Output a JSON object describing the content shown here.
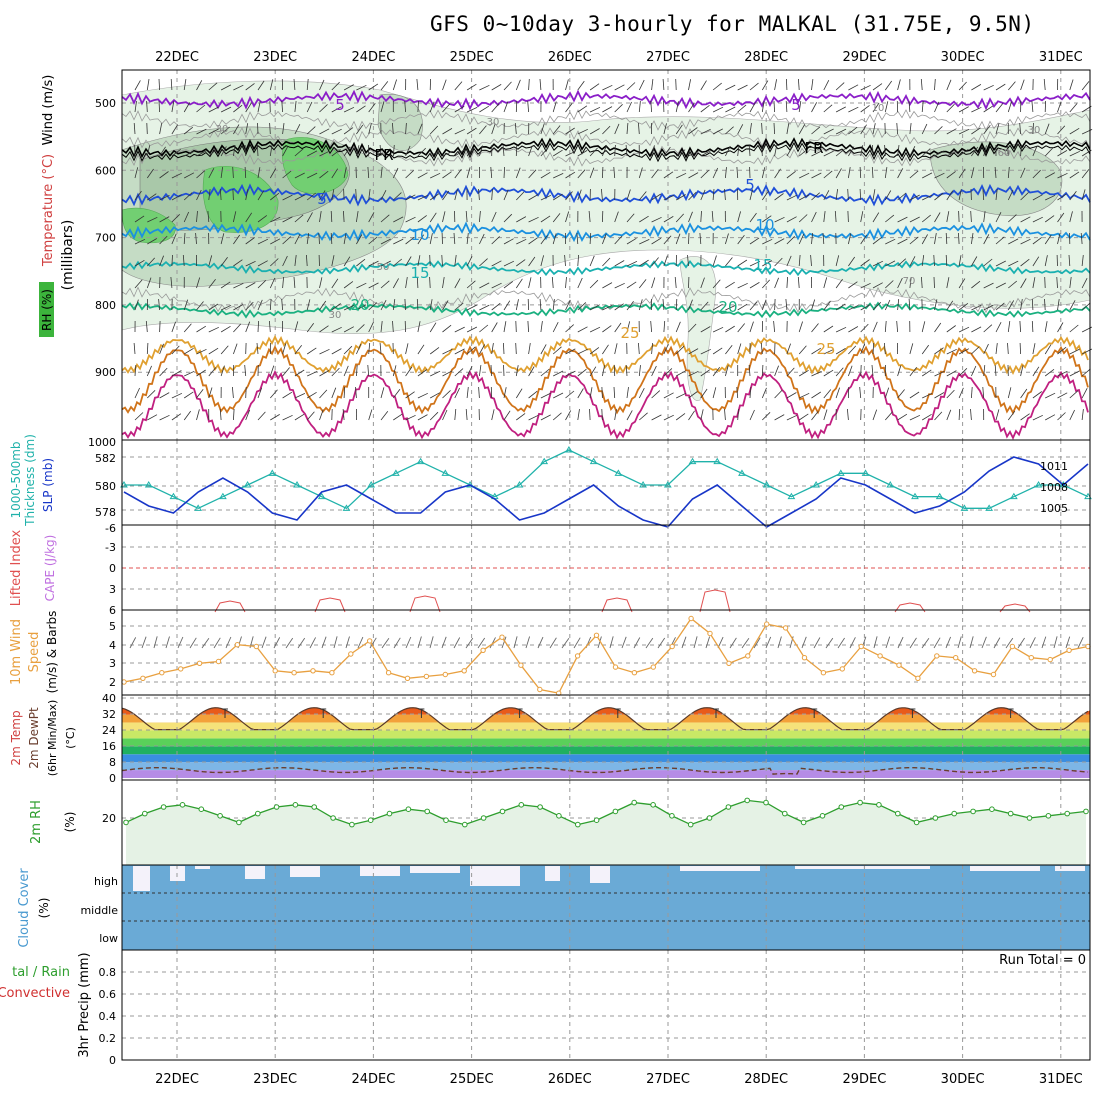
{
  "title": "GFS 0~10day 3-hourly for MALKAL (31.75E, 9.5N)",
  "dates": [
    "22DEC",
    "23DEC",
    "24DEC",
    "25DEC",
    "26DEC",
    "27DEC",
    "28DEC",
    "29DEC",
    "30DEC",
    "31DEC"
  ],
  "colors": {
    "dewpt": "#6a3e2e",
    "rh": "#2e9e2e",
    "cloud": "#6aaad6",
    "thick": "#20b2aa",
    "slp": "#1836c8",
    "wind10": "#e8a040",
    "lifted": "#e05050"
  },
  "panels": {
    "upper": {
      "ylabel_rh": "RH (%)",
      "ylabel_temp": "Temperature (°C)",
      "ylabel_wind": "Wind (m/s)",
      "ylabel_mb": "(millibars)",
      "ticks": [
        "500",
        "600",
        "700",
        "800",
        "900",
        "1000"
      ],
      "contour_labels": {
        "t5a": "5",
        "t5b": "5",
        "fr1": "FR",
        "fr2": "FR",
        "t5c": "5",
        "t5d": "5",
        "t10a": "10",
        "t10b": "10",
        "t15a": "15",
        "t15b": "15",
        "t20a": "20",
        "t20b": "20",
        "t25a": "25",
        "t25b": "25",
        "rh30a": "30",
        "rh30b": "30",
        "rh30c": "30",
        "rh30d": "30",
        "rh50": "50",
        "rh10": "10",
        "rh60": "60",
        "rh70": "70"
      }
    },
    "thickness": {
      "ylabel1": "1000-500mb",
      "ylabel2": "Thickness (dm)",
      "ylabel_slp": "SLP (mb)",
      "left_ticks": [
        "582",
        "580",
        "578"
      ],
      "right_ticks": [
        "1011",
        "1008",
        "1005"
      ]
    },
    "cape": {
      "ylabel_li": "Lifted Index",
      "ylabel_cape": "CAPE (J/kg)",
      "ticks": [
        "-6",
        "-3",
        "0",
        "3",
        "6"
      ]
    },
    "wind10": {
      "ylabel1": "10m Wind",
      "ylabel2": "Speed",
      "ylabel3": "(m/s) & Barbs",
      "ticks": [
        "5",
        "4",
        "3",
        "2"
      ]
    },
    "temp2m": {
      "ylabel1": "2m Temp",
      "ylabel2": "2m DewPt",
      "ylabel3": "(6hr Min/Max)",
      "ylabel4": "(°C)",
      "ticks": [
        "40",
        "32",
        "24",
        "16",
        "8",
        "0"
      ]
    },
    "rh2m": {
      "ylabel1": "2m RH",
      "ylabel2": "(%)",
      "ticks": [
        "20"
      ]
    },
    "cloud": {
      "ylabel1": "Cloud Cover",
      "ylabel2": "(%)",
      "ticks": [
        "high",
        "middle",
        "low"
      ]
    },
    "precip": {
      "ylabel1": "tal / Rain",
      "ylabel2": "Convective",
      "ylabel3": "3hr Precip (mm)",
      "run_total": "Run Total = 0",
      "ticks": [
        "0.8",
        "0.6",
        "0.4",
        "0.2",
        "0"
      ]
    }
  },
  "chart_data": [
    {
      "type": "heatmap",
      "name": "upper-air cross section",
      "x": "22DEC-31DEC 3-hourly",
      "ylim": [
        1000,
        450
      ],
      "ylabel": "millibars"
    },
    {
      "type": "line",
      "series": [
        {
          "name": "Thickness (dm)",
          "values": [
            580,
            580,
            579,
            578,
            579,
            580,
            581,
            580,
            579,
            578,
            580,
            581,
            582,
            581,
            580,
            579,
            580,
            582,
            583,
            582,
            581,
            580,
            580,
            582,
            582,
            581,
            580,
            579,
            580,
            581,
            581,
            580,
            579,
            579,
            578,
            578,
            579,
            580,
            580,
            579
          ]
        },
        {
          "name": "SLP (mb)",
          "values": [
            1008,
            1006,
            1005,
            1008,
            1010,
            1008,
            1005,
            1004,
            1008,
            1009,
            1007,
            1005,
            1005,
            1008,
            1009,
            1007,
            1004,
            1005,
            1007,
            1009,
            1006,
            1004,
            1003,
            1007,
            1009,
            1006,
            1003,
            1005,
            1007,
            1010,
            1009,
            1007,
            1005,
            1006,
            1008,
            1011,
            1013,
            1012,
            1009,
            1012
          ]
        }
      ],
      "ylim_left": [
        577,
        583
      ],
      "ylim_right": [
        1004,
        1014
      ]
    },
    {
      "type": "line",
      "name": "Lifted Index",
      "ylim": [
        -6,
        6
      ]
    },
    {
      "type": "line",
      "name": "10m Wind Speed",
      "values": [
        2.0,
        2.2,
        2.5,
        2.7,
        3.0,
        3.1,
        4.0,
        3.9,
        2.6,
        2.5,
        2.6,
        2.5,
        3.5,
        4.2,
        2.5,
        2.2,
        2.3,
        2.4,
        2.6,
        3.7,
        4.4,
        2.9,
        1.6,
        1.4,
        3.4,
        4.5,
        2.8,
        2.5,
        2.8,
        3.9,
        5.4,
        4.6,
        3.0,
        3.4,
        5.1,
        4.9,
        3.3,
        2.5,
        2.7,
        3.9,
        3.4,
        2.9,
        2.2,
        3.4,
        3.3,
        2.6,
        2.4,
        3.9,
        3.3,
        3.2,
        3.7,
        3.9
      ],
      "ylim": [
        1,
        6
      ]
    },
    {
      "type": "area",
      "name": "2m Temp",
      "ylim": [
        0,
        40
      ]
    },
    {
      "type": "area",
      "name": "2m RH",
      "values": [
        18,
        22,
        25,
        26,
        24,
        21,
        18,
        22,
        25,
        26,
        25,
        20,
        17,
        19,
        22,
        24,
        23,
        19,
        17,
        20,
        23,
        26,
        25,
        21,
        17,
        19,
        23,
        27,
        26,
        21,
        17,
        20,
        25,
        28,
        27,
        22,
        18,
        21,
        25,
        27,
        26,
        22,
        18,
        20,
        22,
        23,
        24,
        22,
        20,
        21,
        22,
        23
      ],
      "ylim": [
        0,
        40
      ]
    },
    {
      "type": "bar",
      "name": "Cloud Cover",
      "ylim": [
        0,
        100
      ]
    },
    {
      "type": "bar",
      "name": "3hr Precip",
      "ylim": [
        0,
        1
      ]
    }
  ]
}
